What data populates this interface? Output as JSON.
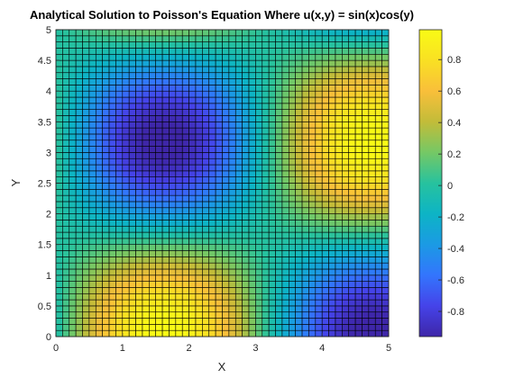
{
  "chart_data": {
    "type": "heatmap",
    "title": "Analytical Solution to Poisson's Equation Where u(x,y) = sin(x)cos(y)",
    "xlabel": "X",
    "ylabel": "Y",
    "function": "u(x,y) = sin(x)cos(y)",
    "xlim": [
      0,
      5
    ],
    "ylim": [
      0,
      5
    ],
    "grid_spacing": 0.1,
    "grid_lines": true,
    "x_ticks": [
      0,
      1,
      2,
      3,
      4,
      5
    ],
    "y_ticks": [
      0,
      0.5,
      1,
      1.5,
      2,
      2.5,
      3,
      3.5,
      4,
      4.5,
      5
    ],
    "x_tick_labels": [
      "0",
      "1",
      "2",
      "3",
      "4",
      "5"
    ],
    "y_tick_labels": [
      "0",
      "0.5",
      "1",
      "1.5",
      "2",
      "2.5",
      "3",
      "3.5",
      "4",
      "4.5",
      "5"
    ],
    "colorbar": {
      "position": "right",
      "range": [
        -0.96,
        0.99
      ],
      "ticks": [
        -0.8,
        -0.6,
        -0.4,
        -0.2,
        0,
        0.2,
        0.4,
        0.6,
        0.8
      ],
      "tick_labels": [
        "-0.8",
        "-0.6",
        "-0.4",
        "-0.2",
        "0",
        "0.2",
        "0.4",
        "0.6",
        "0.8"
      ]
    },
    "colormap": "parula",
    "colormap_stops": [
      "#3e26a8",
      "#4543e9",
      "#3375fd",
      "#1b9ae4",
      "#0db4c5",
      "#27c29e",
      "#75c865",
      "#c2bc39",
      "#f9bf3a",
      "#f9e023",
      "#f9fb15"
    ]
  }
}
